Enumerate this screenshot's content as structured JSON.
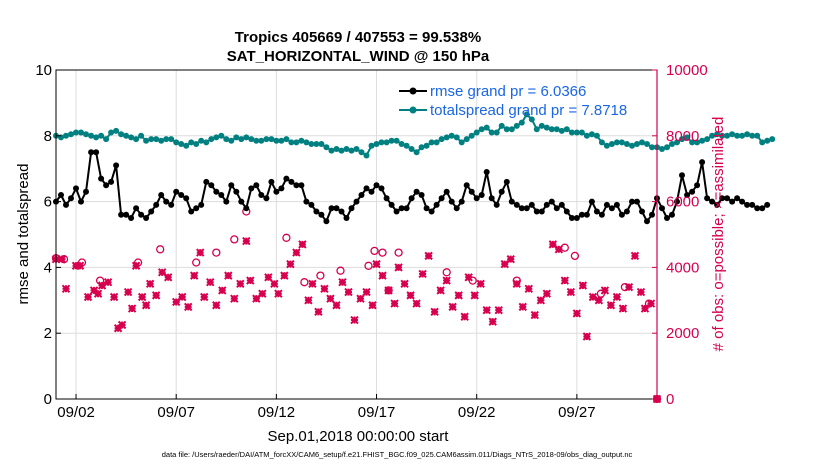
{
  "colors": {
    "rmse": "#000000",
    "spread": "#008080",
    "obs": "#d6004f",
    "legend_text": "#1a66e6",
    "grid": "#dddddd",
    "axis": "#000000"
  },
  "footer": "data file: /Users/raeder/DAI/ATM_forcXX/CAM6_setup/f.e21.FHIST_BGC.f09_025.CAM6assim.011/Diags_NTrS_2018-09/obs_diag_output.nc",
  "chart_data": {
    "type": "line",
    "title": "Tropics 405669 / 407553 = 99.538%",
    "subtitle": "SAT_HORIZONTAL_WIND @ 150 hPa",
    "xlabel": "Sep.01,2018 00:00:00 start",
    "ylabel": "rmse and totalspread",
    "ylabel_right": "# of obs: o=possible; ×=assimilated",
    "x_tick_labels": [
      "09/02",
      "09/07",
      "09/12",
      "09/17",
      "09/22",
      "09/27"
    ],
    "x_ticks_day": [
      1,
      6,
      11,
      16,
      21,
      26
    ],
    "xlim": [
      0,
      30
    ],
    "ylim": [
      0,
      10
    ],
    "y_ticks": [
      "0",
      "2",
      "4",
      "6",
      "8",
      "10"
    ],
    "ylim_right": [
      0,
      10000
    ],
    "y_ticks_right": [
      "0",
      "2000",
      "4000",
      "6000",
      "8000",
      "10000"
    ],
    "legend": [
      {
        "series": "rmse",
        "label": "rmse grand pr = 6.0366"
      },
      {
        "series": "totalspread",
        "label": "totalspread grand pr = 7.8718"
      }
    ],
    "series": [
      {
        "name": "rmse",
        "x_start": 0,
        "x_step": 0.25,
        "values": [
          6.0,
          6.2,
          5.9,
          6.1,
          6.4,
          6.0,
          6.3,
          7.5,
          7.5,
          6.7,
          6.5,
          6.6,
          7.1,
          5.6,
          5.6,
          5.5,
          5.8,
          5.6,
          5.5,
          5.7,
          5.9,
          6.2,
          6.0,
          5.9,
          6.3,
          6.2,
          6.1,
          5.7,
          5.8,
          5.9,
          6.6,
          6.5,
          6.3,
          6.2,
          6.0,
          6.5,
          6.3,
          6.0,
          5.8,
          6.4,
          6.5,
          6.2,
          6.1,
          6.6,
          6.3,
          6.4,
          6.7,
          6.6,
          6.5,
          6.5,
          6.0,
          5.9,
          5.7,
          5.6,
          5.4,
          5.8,
          5.8,
          5.7,
          5.5,
          5.8,
          6.0,
          6.2,
          6.4,
          6.3,
          6.5,
          6.4,
          6.1,
          5.9,
          5.7,
          5.8,
          5.8,
          6.1,
          6.3,
          6.2,
          5.8,
          5.7,
          5.9,
          6.1,
          6.3,
          6.0,
          5.8,
          6.0,
          6.5,
          6.3,
          6.1,
          6.2,
          6.9,
          6.1,
          5.9,
          6.3,
          6.6,
          6.0,
          5.9,
          5.8,
          5.8,
          5.9,
          5.7,
          5.7,
          5.9,
          6.0,
          5.8,
          5.9,
          5.7,
          5.5,
          5.5,
          5.6,
          5.6,
          6.0,
          5.7,
          5.6,
          5.9,
          5.8,
          5.9,
          5.6,
          5.7,
          6.0,
          6.0,
          5.7,
          5.4,
          5.6,
          6.1,
          5.8,
          5.5,
          5.6,
          6.0,
          6.8,
          6.2,
          6.3,
          6.5,
          7.2,
          6.1,
          6.0,
          5.9,
          6.1,
          6.1,
          6.0,
          6.1,
          6.0,
          5.9,
          5.9,
          5.8,
          5.8,
          5.9
        ]
      },
      {
        "name": "totalspread",
        "x_start": 0,
        "x_step": 0.25,
        "values": [
          8.0,
          7.95,
          8.0,
          8.05,
          8.1,
          8.1,
          8.05,
          8.0,
          7.95,
          8.0,
          7.9,
          8.1,
          8.15,
          8.05,
          8.0,
          7.95,
          7.9,
          8.0,
          7.85,
          7.9,
          7.9,
          7.85,
          7.9,
          7.9,
          7.8,
          7.75,
          7.7,
          7.8,
          7.75,
          7.85,
          7.8,
          7.9,
          7.95,
          8.0,
          7.9,
          7.85,
          7.95,
          7.9,
          7.95,
          7.9,
          7.85,
          7.85,
          7.9,
          7.9,
          7.85,
          7.85,
          7.9,
          7.8,
          7.8,
          7.85,
          7.8,
          7.75,
          7.75,
          7.75,
          7.65,
          7.55,
          7.6,
          7.55,
          7.6,
          7.55,
          7.6,
          7.5,
          7.4,
          7.7,
          7.75,
          7.8,
          7.8,
          7.85,
          7.85,
          7.75,
          7.7,
          7.6,
          7.5,
          7.65,
          7.7,
          7.8,
          7.8,
          7.9,
          7.95,
          8.0,
          7.95,
          7.8,
          7.9,
          8.0,
          8.1,
          8.2,
          8.25,
          8.1,
          8.1,
          8.3,
          8.2,
          8.2,
          8.3,
          8.4,
          8.65,
          8.5,
          8.2,
          8.3,
          8.25,
          8.2,
          8.2,
          8.15,
          8.2,
          8.1,
          8.1,
          8.1,
          8.0,
          8.05,
          8.0,
          7.8,
          7.7,
          7.75,
          7.8,
          7.8,
          7.75,
          7.7,
          7.75,
          7.8,
          7.75,
          7.65,
          7.65,
          7.6,
          7.65,
          7.75,
          7.8,
          7.9,
          7.95,
          7.8,
          7.8,
          7.85,
          7.9,
          8.0,
          8.05,
          8.0,
          8.0,
          8.05,
          8.0,
          8.0,
          8.05,
          8.0,
          8.0,
          7.8,
          7.85,
          7.9
        ]
      },
      {
        "name": "obs_possible",
        "axis": "right",
        "marker": "o",
        "points": [
          [
            0.0,
            4280
          ],
          [
            0.4,
            4250
          ],
          [
            1.3,
            4150
          ],
          [
            2.2,
            3600
          ],
          [
            4.1,
            4150
          ],
          [
            5.2,
            4550
          ],
          [
            7.0,
            4150
          ],
          [
            8.0,
            4450
          ],
          [
            8.9,
            4850
          ],
          [
            9.5,
            5700
          ],
          [
            11.5,
            4900
          ],
          [
            12.4,
            3550
          ],
          [
            13.2,
            3750
          ],
          [
            14.2,
            3900
          ],
          [
            15.6,
            4050
          ],
          [
            15.9,
            4500
          ],
          [
            16.3,
            4450
          ],
          [
            16.6,
            3300
          ],
          [
            17.1,
            4450
          ],
          [
            19.5,
            3850
          ],
          [
            20.8,
            3600
          ],
          [
            23.0,
            3600
          ],
          [
            25.4,
            4600
          ],
          [
            25.9,
            4350
          ],
          [
            27.2,
            3200
          ],
          [
            28.4,
            3400
          ],
          [
            29.6,
            2900
          ],
          [
            30.0,
            0
          ]
        ]
      },
      {
        "name": "obs_assimilated",
        "axis": "right",
        "marker": "x",
        "points": [
          [
            0.0,
            4250
          ],
          [
            0.3,
            4250
          ],
          [
            0.5,
            3350
          ],
          [
            1.0,
            4050
          ],
          [
            1.2,
            4050
          ],
          [
            1.6,
            3100
          ],
          [
            1.9,
            3300
          ],
          [
            2.1,
            3200
          ],
          [
            2.3,
            3450
          ],
          [
            2.6,
            3550
          ],
          [
            2.9,
            3100
          ],
          [
            3.1,
            2150
          ],
          [
            3.3,
            2250
          ],
          [
            3.6,
            3250
          ],
          [
            3.8,
            2750
          ],
          [
            4.0,
            4050
          ],
          [
            4.3,
            3100
          ],
          [
            4.5,
            2850
          ],
          [
            4.7,
            3500
          ],
          [
            5.0,
            3150
          ],
          [
            5.3,
            3850
          ],
          [
            5.6,
            3700
          ],
          [
            6.0,
            2950
          ],
          [
            6.3,
            3100
          ],
          [
            6.6,
            2800
          ],
          [
            6.9,
            3750
          ],
          [
            7.2,
            4450
          ],
          [
            7.4,
            3100
          ],
          [
            7.7,
            3550
          ],
          [
            8.0,
            2850
          ],
          [
            8.3,
            3300
          ],
          [
            8.6,
            3750
          ],
          [
            8.9,
            3050
          ],
          [
            9.2,
            3500
          ],
          [
            9.5,
            4800
          ],
          [
            9.7,
            3600
          ],
          [
            10.0,
            3050
          ],
          [
            10.3,
            3200
          ],
          [
            10.6,
            3700
          ],
          [
            10.9,
            3500
          ],
          [
            11.1,
            3200
          ],
          [
            11.4,
            3750
          ],
          [
            11.7,
            4100
          ],
          [
            12.0,
            4450
          ],
          [
            12.3,
            4700
          ],
          [
            12.6,
            3000
          ],
          [
            12.8,
            3500
          ],
          [
            13.1,
            2650
          ],
          [
            13.4,
            3350
          ],
          [
            13.7,
            3050
          ],
          [
            14.0,
            2850
          ],
          [
            14.3,
            3550
          ],
          [
            14.6,
            3250
          ],
          [
            14.9,
            2400
          ],
          [
            15.2,
            3050
          ],
          [
            15.5,
            3250
          ],
          [
            15.8,
            2850
          ],
          [
            16.0,
            4100
          ],
          [
            16.3,
            3750
          ],
          [
            16.6,
            3300
          ],
          [
            16.9,
            2900
          ],
          [
            17.1,
            4000
          ],
          [
            17.4,
            3500
          ],
          [
            17.7,
            3150
          ],
          [
            18.0,
            2900
          ],
          [
            18.3,
            3800
          ],
          [
            18.6,
            4350
          ],
          [
            18.9,
            2650
          ],
          [
            19.2,
            3300
          ],
          [
            19.5,
            3600
          ],
          [
            19.8,
            2800
          ],
          [
            20.1,
            3150
          ],
          [
            20.4,
            2500
          ],
          [
            20.6,
            3700
          ],
          [
            20.9,
            3150
          ],
          [
            21.2,
            3500
          ],
          [
            21.5,
            2700
          ],
          [
            21.8,
            2350
          ],
          [
            22.1,
            2700
          ],
          [
            22.4,
            4100
          ],
          [
            22.7,
            4250
          ],
          [
            23.0,
            3500
          ],
          [
            23.3,
            2800
          ],
          [
            23.6,
            3350
          ],
          [
            23.9,
            2550
          ],
          [
            24.2,
            3000
          ],
          [
            24.5,
            3200
          ],
          [
            24.8,
            4700
          ],
          [
            25.1,
            4550
          ],
          [
            25.4,
            3600
          ],
          [
            25.7,
            3250
          ],
          [
            26.0,
            2600
          ],
          [
            26.3,
            3450
          ],
          [
            26.5,
            1900
          ],
          [
            26.8,
            3100
          ],
          [
            27.1,
            3000
          ],
          [
            27.4,
            3300
          ],
          [
            27.7,
            2850
          ],
          [
            28.0,
            3100
          ],
          [
            28.3,
            2750
          ],
          [
            28.6,
            3400
          ],
          [
            28.9,
            4350
          ],
          [
            29.2,
            3250
          ],
          [
            29.4,
            2750
          ],
          [
            29.7,
            2900
          ],
          [
            30.0,
            0
          ]
        ]
      }
    ]
  }
}
